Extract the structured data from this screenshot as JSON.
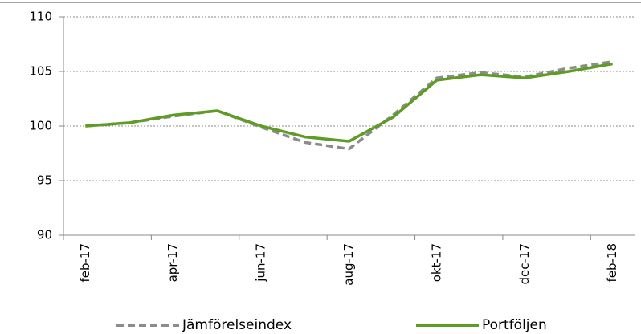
{
  "chart_data": {
    "type": "line",
    "categories": [
      "feb-17",
      null,
      "apr-17",
      null,
      "jun-17",
      null,
      "aug-17",
      null,
      "okt-17",
      null,
      "dec-17",
      null,
      "feb-18"
    ],
    "series": [
      {
        "name": "Jämförelseindex",
        "color": "#8c8c8c",
        "dashed": true,
        "values": [
          100,
          100.3,
          100.9,
          101.4,
          99.9,
          98.5,
          97.9,
          101.0,
          104.4,
          104.9,
          104.5,
          105.3,
          105.9
        ]
      },
      {
        "name": "Portföljen",
        "color": "#5e9c24",
        "dashed": false,
        "values": [
          100,
          100.3,
          101.0,
          101.4,
          100.0,
          99.0,
          98.6,
          100.8,
          104.2,
          104.7,
          104.4,
          105.0,
          105.7
        ]
      }
    ],
    "ylim": [
      90,
      110
    ],
    "yticks": [
      90,
      95,
      100,
      105,
      110
    ],
    "grid": true,
    "legend": "bottom"
  }
}
